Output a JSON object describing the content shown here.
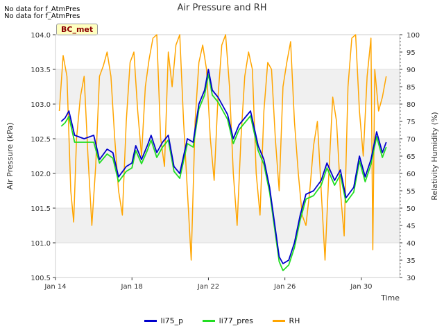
{
  "notes": [
    "No data for f_AtmPres",
    "No data for f_AtmPres"
  ],
  "badge": "BC_met",
  "chart_data": {
    "type": "line",
    "title": "Air Pressure and RH",
    "xlabel": "Time",
    "ylabel": "Air Pressure (kPa)",
    "y2label": "Relativity Humidity (%)",
    "x_ticks": [
      "Jan 14",
      "Jan 18",
      "Jan 22",
      "Jan 26",
      "Jan 30"
    ],
    "x_tick_days": [
      14,
      18,
      22,
      26,
      30
    ],
    "xlim": [
      14,
      32
    ],
    "ylim": [
      100.5,
      104.0
    ],
    "y_ticks": [
      "100.5",
      "101.0",
      "101.5",
      "102.0",
      "102.5",
      "103.0",
      "103.5",
      "104.0"
    ],
    "y2lim": [
      30,
      100
    ],
    "y2_ticks": [
      "30",
      "35",
      "40",
      "45",
      "50",
      "55",
      "60",
      "65",
      "70",
      "75",
      "80",
      "85",
      "90",
      "95",
      "100"
    ],
    "series": [
      {
        "name": "li75_p",
        "color": "#0000cc",
        "axis": "left",
        "x": [
          14.3,
          14.5,
          14.7,
          15.0,
          15.5,
          16.0,
          16.3,
          16.7,
          17.0,
          17.3,
          17.7,
          18.0,
          18.2,
          18.5,
          18.8,
          19.0,
          19.3,
          19.6,
          19.9,
          20.2,
          20.5,
          20.9,
          21.2,
          21.5,
          21.8,
          22.0,
          22.2,
          22.5,
          22.8,
          23.0,
          23.3,
          23.6,
          23.9,
          24.2,
          24.6,
          24.9,
          25.2,
          25.5,
          25.7,
          25.9,
          26.2,
          26.5,
          26.8,
          27.1,
          27.5,
          27.9,
          28.2,
          28.6,
          28.9,
          29.2,
          29.6,
          29.9,
          30.2,
          30.5,
          30.8,
          31.1,
          31.3
        ],
        "y": [
          102.75,
          102.8,
          102.9,
          102.55,
          102.5,
          102.55,
          102.2,
          102.35,
          102.3,
          101.95,
          102.1,
          102.15,
          102.4,
          102.2,
          102.4,
          102.55,
          102.3,
          102.45,
          102.55,
          102.1,
          102.0,
          102.5,
          102.45,
          103.0,
          103.2,
          103.5,
          103.2,
          103.1,
          102.95,
          102.85,
          102.5,
          102.7,
          102.8,
          102.9,
          102.4,
          102.2,
          101.8,
          101.2,
          100.8,
          100.7,
          100.75,
          101.0,
          101.4,
          101.7,
          101.75,
          101.9,
          102.15,
          101.9,
          102.05,
          101.65,
          101.8,
          102.25,
          101.95,
          102.2,
          102.6,
          102.3,
          102.45
        ]
      },
      {
        "name": "li77_pres",
        "color": "#22dd22",
        "axis": "left",
        "x": [
          14.3,
          14.5,
          14.7,
          15.0,
          15.5,
          16.0,
          16.3,
          16.7,
          17.0,
          17.3,
          17.7,
          18.0,
          18.2,
          18.5,
          18.8,
          19.0,
          19.3,
          19.6,
          19.9,
          20.2,
          20.5,
          20.9,
          21.2,
          21.5,
          21.8,
          22.0,
          22.2,
          22.5,
          22.8,
          23.0,
          23.3,
          23.6,
          23.9,
          24.2,
          24.6,
          24.9,
          25.2,
          25.5,
          25.7,
          25.9,
          26.2,
          26.5,
          26.8,
          27.1,
          27.5,
          27.9,
          28.2,
          28.6,
          28.9,
          29.2,
          29.6,
          29.9,
          30.2,
          30.5,
          30.8,
          31.1,
          31.3
        ],
        "y": [
          102.68,
          102.73,
          102.82,
          102.45,
          102.45,
          102.45,
          102.15,
          102.28,
          102.22,
          101.88,
          102.03,
          102.08,
          102.33,
          102.14,
          102.33,
          102.48,
          102.23,
          102.38,
          102.48,
          102.03,
          101.93,
          102.43,
          102.38,
          102.93,
          103.13,
          103.43,
          103.13,
          103.03,
          102.88,
          102.78,
          102.43,
          102.63,
          102.73,
          102.83,
          102.33,
          102.13,
          101.73,
          101.13,
          100.73,
          100.6,
          100.68,
          100.93,
          101.33,
          101.63,
          101.68,
          101.83,
          102.08,
          101.83,
          101.98,
          101.58,
          101.73,
          102.18,
          101.88,
          102.13,
          102.53,
          102.23,
          102.38
        ]
      },
      {
        "name": "RH",
        "color": "#ffa500",
        "axis": "right",
        "x": [
          14.2,
          14.4,
          14.6,
          14.8,
          14.95,
          15.1,
          15.3,
          15.5,
          15.7,
          15.9,
          16.1,
          16.3,
          16.5,
          16.7,
          16.9,
          17.1,
          17.3,
          17.5,
          17.7,
          17.9,
          18.1,
          18.3,
          18.5,
          18.7,
          18.9,
          19.1,
          19.3,
          19.5,
          19.7,
          19.9,
          20.1,
          20.3,
          20.5,
          20.7,
          20.9,
          21.1,
          21.3,
          21.5,
          21.7,
          21.9,
          22.1,
          22.3,
          22.5,
          22.7,
          22.9,
          23.1,
          23.3,
          23.5,
          23.7,
          23.9,
          24.1,
          24.3,
          24.5,
          24.7,
          24.9,
          25.1,
          25.3,
          25.5,
          25.7,
          25.9,
          26.1,
          26.3,
          26.5,
          26.7,
          26.9,
          27.1,
          27.3,
          27.5,
          27.7,
          27.9,
          28.1,
          28.3,
          28.5,
          28.7,
          28.9,
          29.1,
          29.3,
          29.5,
          29.7,
          29.9,
          30.1,
          30.3,
          30.5,
          30.6,
          30.7,
          30.9,
          31.1,
          31.3
        ],
        "y": [
          78,
          94,
          88,
          55,
          46,
          70,
          82,
          88,
          65,
          45,
          62,
          88,
          91,
          95,
          88,
          70,
          55,
          48,
          75,
          92,
          95,
          78,
          65,
          85,
          93,
          99,
          100,
          70,
          62,
          95,
          85,
          97,
          100,
          75,
          55,
          35,
          75,
          92,
          97,
          90,
          70,
          58,
          82,
          97,
          100,
          85,
          60,
          45,
          70,
          88,
          95,
          90,
          60,
          48,
          78,
          92,
          90,
          70,
          55,
          85,
          92,
          98,
          75,
          60,
          48,
          45,
          55,
          68,
          75,
          55,
          35,
          60,
          82,
          75,
          55,
          42,
          85,
          99,
          100,
          78,
          65,
          88,
          99,
          38,
          90,
          78,
          82,
          88
        ]
      }
    ],
    "shaded_bands": [
      [
        101.0,
        101.5
      ],
      [
        102.0,
        102.5
      ],
      [
        103.0,
        103.5
      ]
    ]
  }
}
